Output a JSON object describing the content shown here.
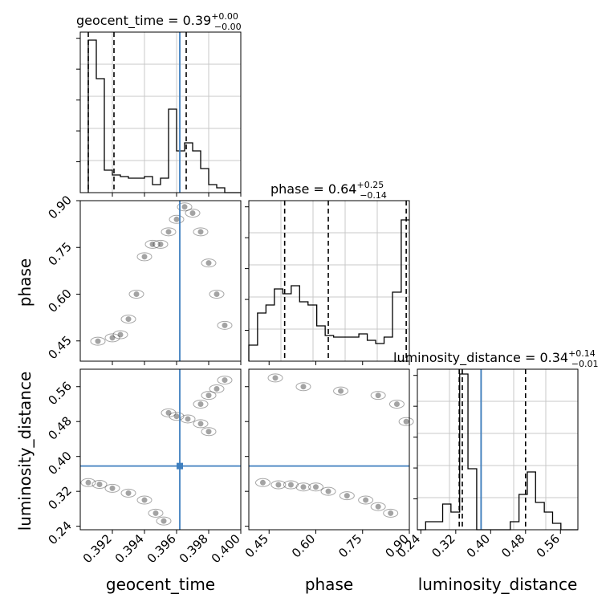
{
  "figure": {
    "type": "corner plot",
    "truth_color": "#3f7fbf",
    "contour_color": "#000000",
    "quantile_line_style": "dashed"
  },
  "chart_data": [
    {
      "panel": "geocent_time-histogram",
      "type": "bar",
      "title_parts": {
        "lead": "geocent_time = 0.39",
        "sup": "+0.00",
        "sub": "−0.00"
      },
      "xlim": [
        0.39,
        0.4
      ],
      "bin_edges": [
        0.3905,
        0.391,
        0.3915,
        0.392,
        0.3925,
        0.393,
        0.3935,
        0.394,
        0.3945,
        0.395,
        0.3955,
        0.396,
        0.3965,
        0.397,
        0.3975,
        0.398,
        0.3985,
        0.399,
        0.3995,
        0.4
      ],
      "values": [
        95,
        71,
        14,
        11,
        10,
        9,
        9,
        10,
        5,
        9,
        52,
        26,
        31,
        26,
        15,
        5,
        3,
        0,
        0
      ],
      "ylim": [
        0,
        100
      ],
      "quantiles": [
        0.3905,
        0.3921,
        0.3966
      ],
      "truth": 0.3962,
      "grid": true
    },
    {
      "panel": "phase-histogram",
      "type": "bar",
      "title_parts": {
        "lead": "phase = 0.64",
        "sup": "+0.25",
        "sub": "−0.14"
      },
      "xlim": [
        0.385,
        0.9
      ],
      "bin_edges": [
        0.385,
        0.413,
        0.44,
        0.467,
        0.494,
        0.521,
        0.548,
        0.575,
        0.603,
        0.63,
        0.657,
        0.684,
        0.711,
        0.738,
        0.765,
        0.792,
        0.819,
        0.846,
        0.874,
        0.9
      ],
      "values": [
        10,
        30,
        35,
        45,
        42,
        47,
        37,
        35,
        22,
        16,
        15,
        15,
        15,
        17,
        13,
        11,
        15,
        43,
        88
      ],
      "ylim": [
        0,
        100
      ],
      "quantiles": [
        0.5,
        0.64,
        0.89
      ],
      "truth": null,
      "grid": true
    },
    {
      "panel": "luminosity_distance-histogram",
      "type": "bar",
      "title_parts": {
        "lead": "luminosity_distance = 0.34",
        "sup": "+0.14",
        "sub": "−0.01"
      },
      "xlim": [
        0.232,
        0.6
      ],
      "bin_edges": [
        0.232,
        0.251,
        0.27,
        0.29,
        0.309,
        0.329,
        0.348,
        0.368,
        0.387,
        0.406,
        0.426,
        0.445,
        0.465,
        0.484,
        0.503,
        0.523,
        0.542,
        0.561,
        0.581,
        0.6
      ],
      "values": [
        0,
        5,
        5,
        16,
        11,
        97,
        38,
        0,
        0,
        0,
        0,
        5,
        22,
        36,
        17,
        11,
        4,
        0,
        0
      ],
      "ylim": [
        0,
        100
      ],
      "quantiles": [
        0.328,
        0.335,
        0.48
      ],
      "truth": 0.378,
      "grid": true
    },
    {
      "panel": "phase-vs-geocent_time",
      "type": "scatter",
      "xlabel": "",
      "ylabel": "phase",
      "xlim": [
        0.39,
        0.4
      ],
      "ylim": [
        0.385,
        0.9
      ],
      "x_ticks": [
        0.392,
        0.394,
        0.396,
        0.398,
        0.4
      ],
      "y_ticks": [
        0.45,
        0.6,
        0.75,
        0.9
      ],
      "y_tick_labels": [
        "0.45",
        "0.60",
        "0.75",
        "0.90"
      ],
      "truth_x": 0.3962,
      "truth_y": null,
      "points": [
        [
          0.3911,
          0.449
        ],
        [
          0.392,
          0.46
        ],
        [
          0.3925,
          0.47
        ],
        [
          0.393,
          0.52
        ],
        [
          0.3935,
          0.6
        ],
        [
          0.394,
          0.72
        ],
        [
          0.3945,
          0.76
        ],
        [
          0.395,
          0.76
        ],
        [
          0.3955,
          0.8
        ],
        [
          0.396,
          0.84
        ],
        [
          0.3965,
          0.88
        ],
        [
          0.397,
          0.86
        ],
        [
          0.3975,
          0.8
        ],
        [
          0.398,
          0.7
        ],
        [
          0.3985,
          0.6
        ],
        [
          0.399,
          0.5
        ]
      ]
    },
    {
      "panel": "luminosity_distance-vs-geocent_time",
      "type": "scatter",
      "xlabel": "geocent_time",
      "ylabel": "luminosity_distance",
      "xlim": [
        0.39,
        0.4
      ],
      "ylim": [
        0.232,
        0.6
      ],
      "x_ticks": [
        0.392,
        0.394,
        0.396,
        0.398,
        0.4
      ],
      "x_tick_labels": [
        "0.392",
        "0.394",
        "0.396",
        "0.398",
        "0.400"
      ],
      "y_ticks": [
        0.24,
        0.32,
        0.4,
        0.48,
        0.56
      ],
      "y_tick_labels": [
        "0.24",
        "0.32",
        "0.40",
        "0.48",
        "0.56"
      ],
      "truth_x": 0.3962,
      "truth_y": 0.378,
      "points": [
        [
          0.3905,
          0.34
        ],
        [
          0.3912,
          0.336
        ],
        [
          0.392,
          0.327
        ],
        [
          0.393,
          0.316
        ],
        [
          0.394,
          0.3
        ],
        [
          0.3947,
          0.27
        ],
        [
          0.3952,
          0.252
        ],
        [
          0.3955,
          0.5
        ],
        [
          0.396,
          0.492
        ],
        [
          0.3967,
          0.486
        ],
        [
          0.3975,
          0.475
        ],
        [
          0.398,
          0.457
        ],
        [
          0.3975,
          0.52
        ],
        [
          0.398,
          0.54
        ],
        [
          0.3985,
          0.555
        ],
        [
          0.399,
          0.575
        ]
      ]
    },
    {
      "panel": "luminosity_distance-vs-phase",
      "type": "scatter",
      "xlabel": "phase",
      "ylabel": "",
      "xlim": [
        0.385,
        0.9
      ],
      "ylim": [
        0.232,
        0.6
      ],
      "x_ticks": [
        0.45,
        0.6,
        0.75,
        0.9
      ],
      "x_tick_labels": [
        "0.45",
        "0.60",
        "0.75",
        "0.90"
      ],
      "y_ticks": [
        0.24,
        0.32,
        0.4,
        0.48,
        0.56
      ],
      "truth_x": null,
      "truth_y": 0.378,
      "points": [
        [
          0.43,
          0.34
        ],
        [
          0.48,
          0.335
        ],
        [
          0.52,
          0.335
        ],
        [
          0.56,
          0.33
        ],
        [
          0.6,
          0.33
        ],
        [
          0.64,
          0.32
        ],
        [
          0.7,
          0.31
        ],
        [
          0.76,
          0.3
        ],
        [
          0.8,
          0.285
        ],
        [
          0.84,
          0.27
        ],
        [
          0.47,
          0.58
        ],
        [
          0.56,
          0.56
        ],
        [
          0.68,
          0.55
        ],
        [
          0.8,
          0.54
        ],
        [
          0.86,
          0.52
        ],
        [
          0.89,
          0.48
        ]
      ]
    },
    {
      "panel": "luminosity_distance-axis-ticks",
      "type": "bar",
      "xlabel": "luminosity_distance",
      "x_ticks": [
        0.24,
        0.32,
        0.4,
        0.48,
        0.56
      ],
      "x_tick_labels": [
        "0.24",
        "0.32",
        "0.40",
        "0.48",
        "0.56"
      ]
    }
  ]
}
